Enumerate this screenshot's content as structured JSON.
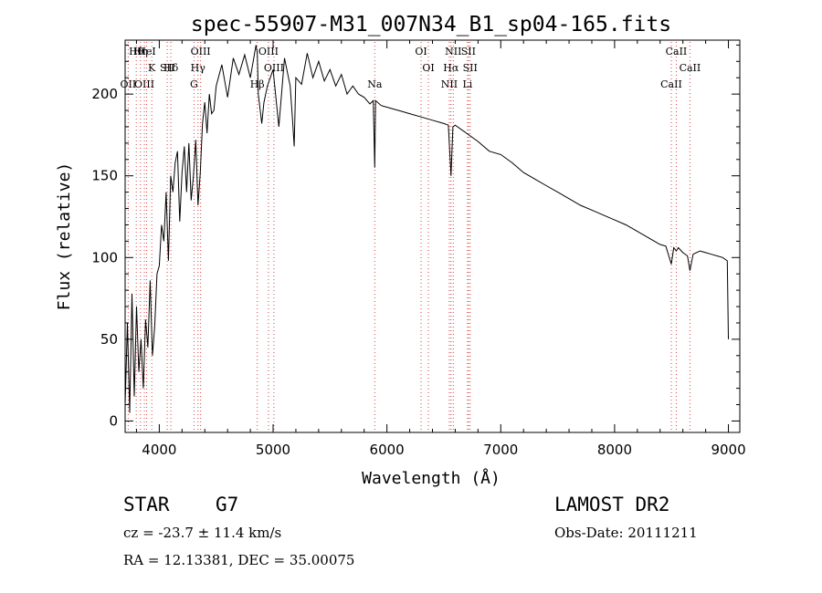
{
  "chart_data": {
    "type": "line",
    "title": "spec-55907-M31_007N34_B1_sp04-165.fits",
    "xlabel": "Wavelength (Å)",
    "ylabel": "Flux (relative)",
    "xlim": [
      3700,
      9100
    ],
    "ylim": [
      -7,
      233
    ],
    "xticks": [
      4000,
      5000,
      6000,
      7000,
      8000,
      9000
    ],
    "yticks": [
      0,
      50,
      100,
      150,
      200
    ],
    "grid": false,
    "series": [
      {
        "x": [
          3700,
          3720,
          3740,
          3760,
          3780,
          3800,
          3820,
          3840,
          3860,
          3880,
          3900,
          3920,
          3940,
          3960,
          3980,
          4000,
          4020,
          4040,
          4060,
          4080,
          4100,
          4120,
          4140,
          4160,
          4180,
          4200,
          4220,
          4240,
          4260,
          4280,
          4300,
          4320,
          4340,
          4360,
          4380,
          4400,
          4420,
          4440,
          4460,
          4480,
          4500,
          4550,
          4600,
          4650,
          4700,
          4750,
          4800,
          4850,
          4861,
          4870,
          4900,
          4920,
          4950,
          5000,
          5050,
          5100,
          5150,
          5170,
          5185,
          5200,
          5250,
          5300,
          5350,
          5400,
          5450,
          5500,
          5550,
          5600,
          5650,
          5700,
          5750,
          5800,
          5850,
          5880,
          5893,
          5900,
          5950,
          6000,
          6100,
          6200,
          6300,
          6400,
          6500,
          6540,
          6563,
          6580,
          6600,
          6700,
          6800,
          6900,
          7000,
          7100,
          7200,
          7300,
          7400,
          7500,
          7600,
          7700,
          7800,
          7900,
          8000,
          8100,
          8200,
          8300,
          8400,
          8450,
          8498,
          8520,
          8542,
          8560,
          8600,
          8640,
          8662,
          8690,
          8750,
          8800,
          8850,
          8900,
          8950,
          8990,
          9000
        ],
        "y": [
          10,
          60,
          5,
          78,
          15,
          70,
          30,
          50,
          20,
          62,
          45,
          86,
          40,
          58,
          90,
          95,
          120,
          110,
          140,
          98,
          150,
          140,
          158,
          165,
          122,
          152,
          168,
          140,
          170,
          135,
          150,
          172,
          132,
          152,
          182,
          195,
          176,
          200,
          188,
          190,
          205,
          218,
          198,
          222,
          212,
          224,
          210,
          230,
          225,
          200,
          182,
          195,
          205,
          215,
          180,
          222,
          205,
          185,
          168,
          210,
          206,
          225,
          210,
          220,
          208,
          215,
          205,
          212,
          200,
          205,
          200,
          198,
          194,
          196,
          155,
          196,
          193,
          192,
          190,
          188,
          186,
          184,
          182,
          181,
          150,
          180,
          181,
          176,
          171,
          165,
          163,
          158,
          152,
          148,
          144,
          140,
          136,
          132,
          129,
          126,
          123,
          120,
          116,
          112,
          108,
          107,
          96,
          106,
          104,
          106,
          103,
          101,
          92,
          102,
          104,
          103,
          102,
          101,
          100,
          98,
          50
        ]
      }
    ],
    "line_markers": [
      {
        "label": "Hθ",
        "x": 3798
      },
      {
        "label": "K",
        "x": 3934
      },
      {
        "label": "OII",
        "x": 3727
      },
      {
        "label": "HeI",
        "x": 3889
      },
      {
        "label": "Hδ",
        "x": 4102
      },
      {
        "label": "OIII",
        "x": 3869
      },
      {
        "label": "Hη",
        "x": 3835
      },
      {
        "label": "SII",
        "x": 4070
      },
      {
        "label": "G",
        "x": 4305
      },
      {
        "label": "OIII",
        "x": 4363
      },
      {
        "label": "Hγ",
        "x": 4340
      },
      {
        "label": "Hβ",
        "x": 4861
      },
      {
        "label": "OIII",
        "x": 4959
      },
      {
        "label": "OIII",
        "x": 5007
      },
      {
        "label": "Na",
        "x": 5893
      },
      {
        "label": "OI",
        "x": 6300
      },
      {
        "label": "OI",
        "x": 6364
      },
      {
        "label": "NII",
        "x": 6548
      },
      {
        "label": "NII",
        "x": 6583
      },
      {
        "label": "Hα",
        "x": 6563
      },
      {
        "label": "Li",
        "x": 6708
      },
      {
        "label": "SII",
        "x": 6716
      },
      {
        "label": "SII",
        "x": 6731
      },
      {
        "label": "CaII",
        "x": 8498
      },
      {
        "label": "CaII",
        "x": 8542
      },
      {
        "label": "CaII",
        "x": 8662
      }
    ]
  },
  "info": {
    "obj_class": "STAR",
    "subclass": "G7",
    "survey": "LAMOST DR2",
    "cz": "cz = -23.7 ± 11.4 km/s",
    "obs_date": "Obs-Date: 20111211",
    "coords": "RA =  12.13381, DEC =  35.00075"
  },
  "colors": {
    "spectrum": "#000000",
    "marker_line": "#d94040",
    "axis": "#000000"
  }
}
